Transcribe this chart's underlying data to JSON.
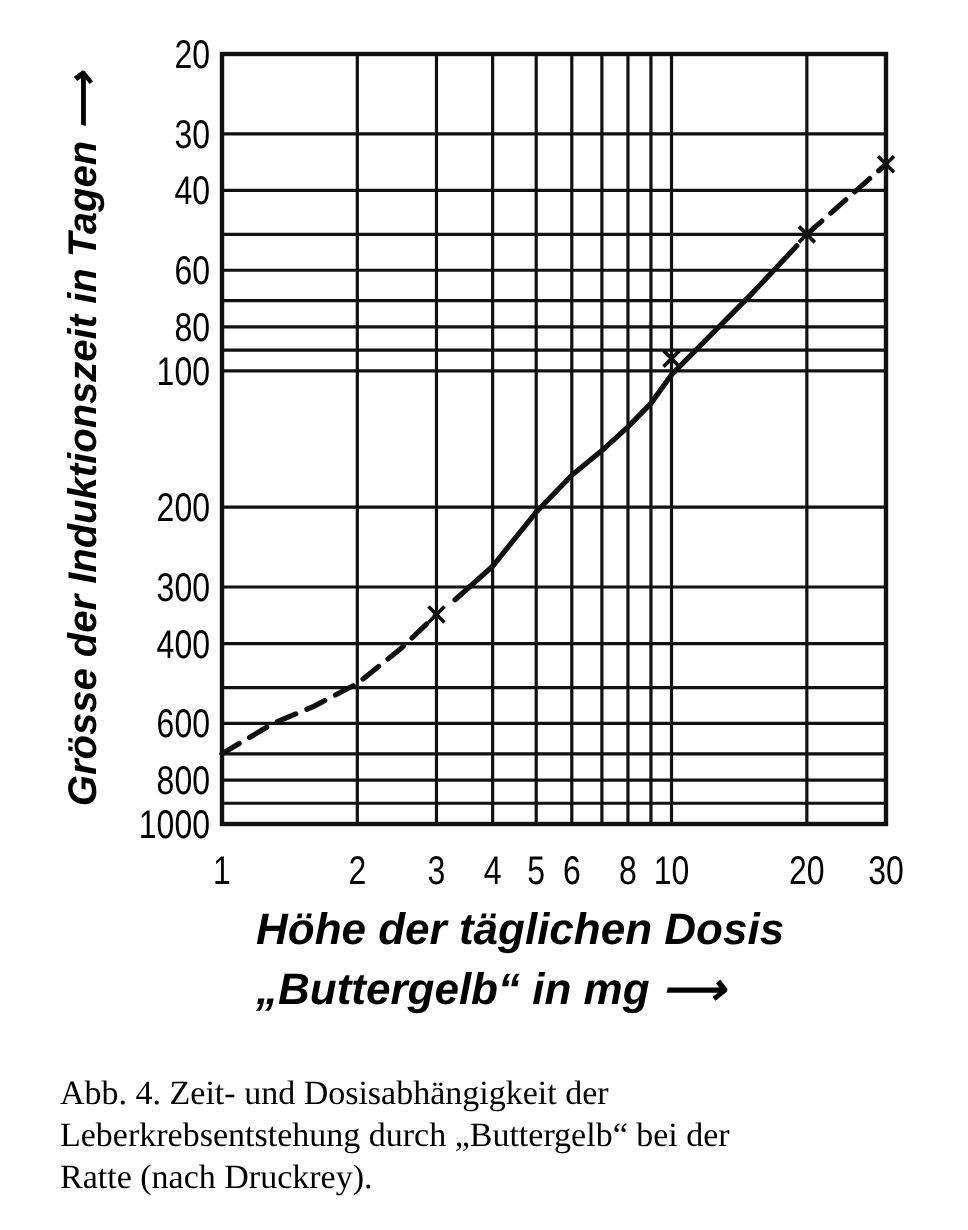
{
  "chart_data": {
    "type": "line",
    "xlabel": "Höhe der täglichen Dosis\n„Buttergelb“ in mg ⟶",
    "ylabel": "Grösse der Induktionszeit in Tagen ⟶",
    "annotations": [
      "Abb. 4. Zeit- und Dosisabhängigkeit der Leberkrebsentstehung durch „Buttergelb“ bei der Ratte (nach Druckrey)."
    ],
    "log": "xy",
    "grid": true,
    "xlim": [
      1,
      30
    ],
    "ylim": [
      1000,
      20
    ],
    "xticks": [
      1,
      2,
      3,
      4,
      5,
      6,
      {
        "value": 7,
        "label": null
      },
      8,
      {
        "value": 9,
        "label": null
      },
      10,
      20,
      30
    ],
    "yticks": [
      20,
      30,
      40,
      {
        "value": 50,
        "label": null
      },
      60,
      {
        "value": 70,
        "label": null
      },
      80,
      {
        "value": 90,
        "label": null
      },
      100,
      200,
      300,
      400,
      {
        "value": 500,
        "label": null
      },
      600,
      {
        "value": 700,
        "label": null
      },
      800,
      {
        "value": 900,
        "label": null
      },
      1000
    ],
    "series": [
      {
        "color": "#111111",
        "line_style": "dashed",
        "x": [
          1,
          1.3,
          1.6,
          2,
          2.5,
          3
        ],
        "values": [
          700,
          600,
          550,
          490,
          410,
          345
        ]
      },
      {
        "color": "#111111",
        "line_style": "solid",
        "x": [
          3.3,
          4,
          5,
          6,
          7,
          8,
          9,
          10,
          15,
          19
        ],
        "values": [
          320,
          270,
          205,
          170,
          150,
          133,
          118,
          102,
          68,
          53
        ]
      },
      {
        "color": "#111111",
        "line_style": "dashed",
        "x": [
          20,
          30
        ],
        "values": [
          50,
          35
        ]
      },
      {
        "type": "scatter",
        "color": "#111111",
        "marker": "cross",
        "x": [
          3,
          10,
          20,
          30
        ],
        "values": [
          345,
          94,
          50,
          35
        ]
      }
    ]
  }
}
